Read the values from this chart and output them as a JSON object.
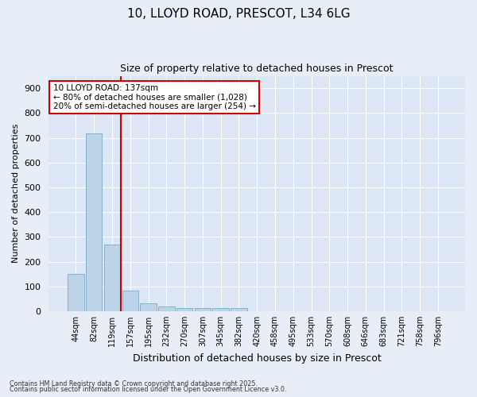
{
  "title_line1": "10, LLOYD ROAD, PRESCOT, L34 6LG",
  "title_line2": "Size of property relative to detached houses in Prescot",
  "xlabel": "Distribution of detached houses by size in Prescot",
  "ylabel": "Number of detached properties",
  "bar_labels": [
    "44sqm",
    "82sqm",
    "119sqm",
    "157sqm",
    "195sqm",
    "232sqm",
    "270sqm",
    "307sqm",
    "345sqm",
    "382sqm",
    "420sqm",
    "458sqm",
    "495sqm",
    "533sqm",
    "570sqm",
    "608sqm",
    "646sqm",
    "683sqm",
    "721sqm",
    "758sqm",
    "796sqm"
  ],
  "bar_values": [
    150,
    718,
    270,
    83,
    33,
    18,
    12,
    12,
    11,
    11,
    0,
    0,
    0,
    0,
    0,
    0,
    0,
    0,
    0,
    0,
    0
  ],
  "bar_color": "#bdd4e8",
  "bar_edge_color": "#7aaac8",
  "vline_x": 2.5,
  "vline_color": "#cc0000",
  "annotation_text": "10 LLOYD ROAD: 137sqm\n← 80% of detached houses are smaller (1,028)\n20% of semi-detached houses are larger (254) →",
  "annotation_box_color": "#ffffff",
  "annotation_box_edge": "#cc0000",
  "ylim": [
    0,
    950
  ],
  "yticks": [
    0,
    100,
    200,
    300,
    400,
    500,
    600,
    700,
    800,
    900
  ],
  "background_color": "#e8eef8",
  "plot_bg_color": "#dde6f4",
  "grid_color": "#ffffff",
  "footer_line1": "Contains HM Land Registry data © Crown copyright and database right 2025.",
  "footer_line2": "Contains public sector information licensed under the Open Government Licence v3.0."
}
